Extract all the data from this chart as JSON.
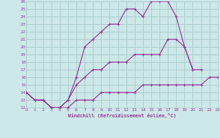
{
  "xlabel": "Windchill (Refroidissement éolien,°C)",
  "bg_color": "#cce8e8",
  "grid_color": "#aacccc",
  "line_color": "#993399",
  "xmin": 0,
  "xmax": 23,
  "ymin": 12,
  "ymax": 26,
  "s1_x": [
    0,
    1,
    2,
    3,
    4,
    5,
    6,
    7,
    8,
    9,
    10,
    11,
    12,
    13,
    14,
    15,
    16,
    17,
    18,
    19,
    20,
    21
  ],
  "s1_y": [
    14,
    13,
    13,
    12,
    12,
    13,
    16,
    20,
    21,
    22,
    23,
    23,
    25,
    25,
    24,
    26,
    26,
    26,
    24,
    20,
    17,
    17
  ],
  "s2_x": [
    0,
    1,
    2,
    3,
    4,
    5,
    6,
    7,
    8,
    9,
    10,
    11,
    12,
    13,
    14,
    15,
    16,
    17,
    18,
    19,
    20
  ],
  "s2_y": [
    14,
    13,
    13,
    12,
    12,
    13,
    15,
    16,
    17,
    17,
    18,
    18,
    18,
    19,
    19,
    19,
    19,
    21,
    21,
    20,
    17
  ],
  "s3_x": [
    0,
    1,
    2,
    3,
    4,
    5,
    6,
    7,
    8,
    9,
    10,
    11,
    12,
    13,
    14,
    15,
    16,
    17,
    18,
    19,
    20,
    21,
    22,
    23
  ],
  "s3_y": [
    14,
    13,
    13,
    12,
    12,
    12,
    13,
    13,
    13,
    14,
    14,
    14,
    14,
    14,
    15,
    15,
    15,
    15,
    15,
    15,
    15,
    15,
    16,
    16
  ],
  "yticks": [
    12,
    13,
    14,
    15,
    16,
    17,
    18,
    19,
    20,
    21,
    22,
    23,
    24,
    25,
    26
  ],
  "xticks": [
    0,
    1,
    2,
    3,
    4,
    5,
    6,
    7,
    8,
    9,
    10,
    11,
    12,
    13,
    14,
    15,
    16,
    17,
    18,
    19,
    20,
    21,
    22,
    23
  ]
}
